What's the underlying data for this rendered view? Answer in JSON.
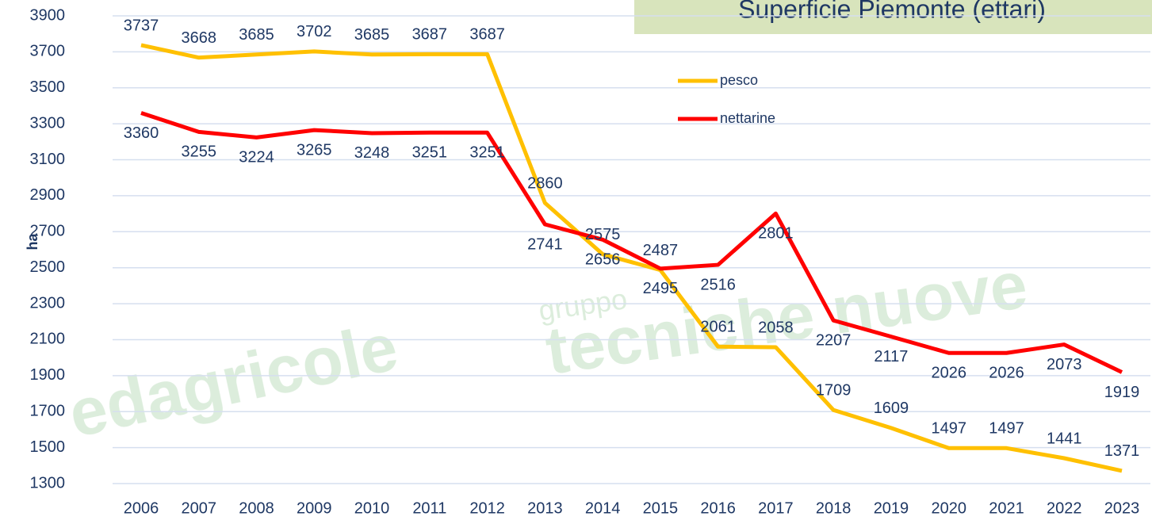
{
  "chart_data": {
    "type": "line",
    "title": "Superficie Piemonte (ettari)",
    "y_label": "ha",
    "x": [
      "2006",
      "2007",
      "2008",
      "2009",
      "2010",
      "2011",
      "2012",
      "2013",
      "2014",
      "2015",
      "2016",
      "2017",
      "2018",
      "2019",
      "2020",
      "2021",
      "2022",
      "2023"
    ],
    "series": [
      {
        "name": "pesco",
        "color": "#ffc000",
        "values": [
          3737,
          3668,
          3685,
          3702,
          3685,
          3687,
          3687,
          2860,
          2575,
          2487,
          2061,
          2058,
          1709,
          1609,
          1497,
          1497,
          1441,
          1371
        ]
      },
      {
        "name": "nettarine",
        "color": "#ff0000",
        "values": [
          3360,
          3255,
          3224,
          3265,
          3248,
          3251,
          3251,
          2741,
          2656,
          2495,
          2516,
          2801,
          2207,
          2117,
          2026,
          2026,
          2073,
          1919
        ]
      }
    ],
    "ylim": [
      1300,
      3900
    ],
    "yticks": [
      1300,
      1500,
      1700,
      1900,
      2100,
      2300,
      2500,
      2700,
      2900,
      3100,
      3300,
      3500,
      3700,
      3900
    ],
    "grid": true,
    "watermark": [
      "edagricole",
      "gruppo",
      "tecniche nuove"
    ]
  }
}
